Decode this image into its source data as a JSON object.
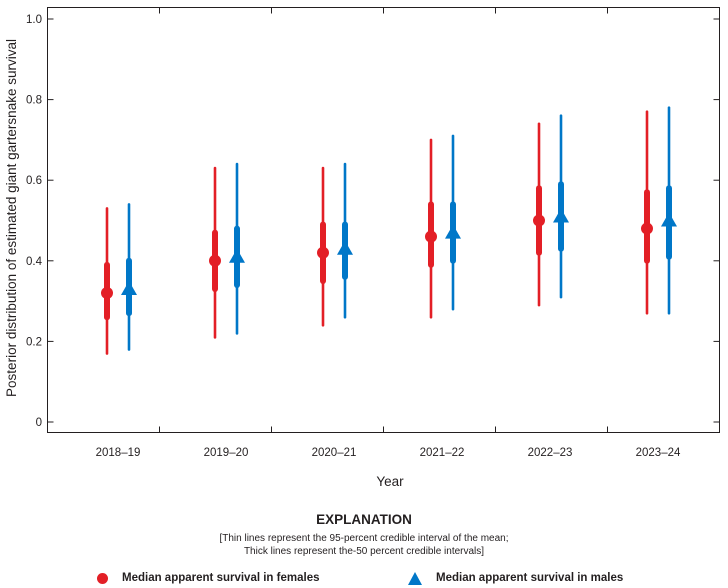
{
  "chart_data": {
    "type": "interval",
    "categories": [
      "2018–19",
      "2019–20",
      "2020–21",
      "2021–22",
      "2022–23",
      "2023–24"
    ],
    "xlabel": "Year",
    "ylabel": "Posterior distribution of estimated giant gartersnake survival",
    "ylim": [
      0,
      1.0
    ],
    "yticks": [
      "0",
      "0.2",
      "0.4",
      "0.6",
      "0.8",
      "1.0"
    ],
    "yticks_values": [
      0,
      0.2,
      0.4,
      0.6,
      0.8,
      1.0
    ],
    "series": [
      {
        "name": "Median apparent survival in females",
        "color": "#e31f26",
        "marker": "circle",
        "median": [
          0.32,
          0.4,
          0.42,
          0.46,
          0.5,
          0.48
        ],
        "ci95_low": [
          0.17,
          0.21,
          0.24,
          0.26,
          0.29,
          0.27
        ],
        "ci95_high": [
          0.53,
          0.63,
          0.63,
          0.7,
          0.74,
          0.77
        ],
        "ci50_low": [
          0.26,
          0.33,
          0.35,
          0.39,
          0.42,
          0.4
        ],
        "ci50_high": [
          0.39,
          0.47,
          0.49,
          0.54,
          0.58,
          0.57
        ]
      },
      {
        "name": "Median apparent survival in males",
        "color": "#0077c8",
        "marker": "triangle",
        "median": [
          0.33,
          0.41,
          0.43,
          0.47,
          0.51,
          0.5
        ],
        "ci95_low": [
          0.18,
          0.22,
          0.26,
          0.28,
          0.31,
          0.27
        ],
        "ci95_high": [
          0.54,
          0.64,
          0.64,
          0.71,
          0.76,
          0.78
        ],
        "ci50_low": [
          0.27,
          0.34,
          0.36,
          0.4,
          0.43,
          0.41
        ],
        "ci50_high": [
          0.4,
          0.48,
          0.49,
          0.54,
          0.59,
          0.58
        ]
      }
    ]
  },
  "explanation": {
    "title": "EXPLANATION",
    "note_line1": "[Thin lines represent the 95-percent credible interval of the mean;",
    "note_line2": "Thick lines represent the-50 percent credible intervals]",
    "legend_female": "Median apparent survival in females",
    "legend_male": "Median apparent survival in males"
  }
}
